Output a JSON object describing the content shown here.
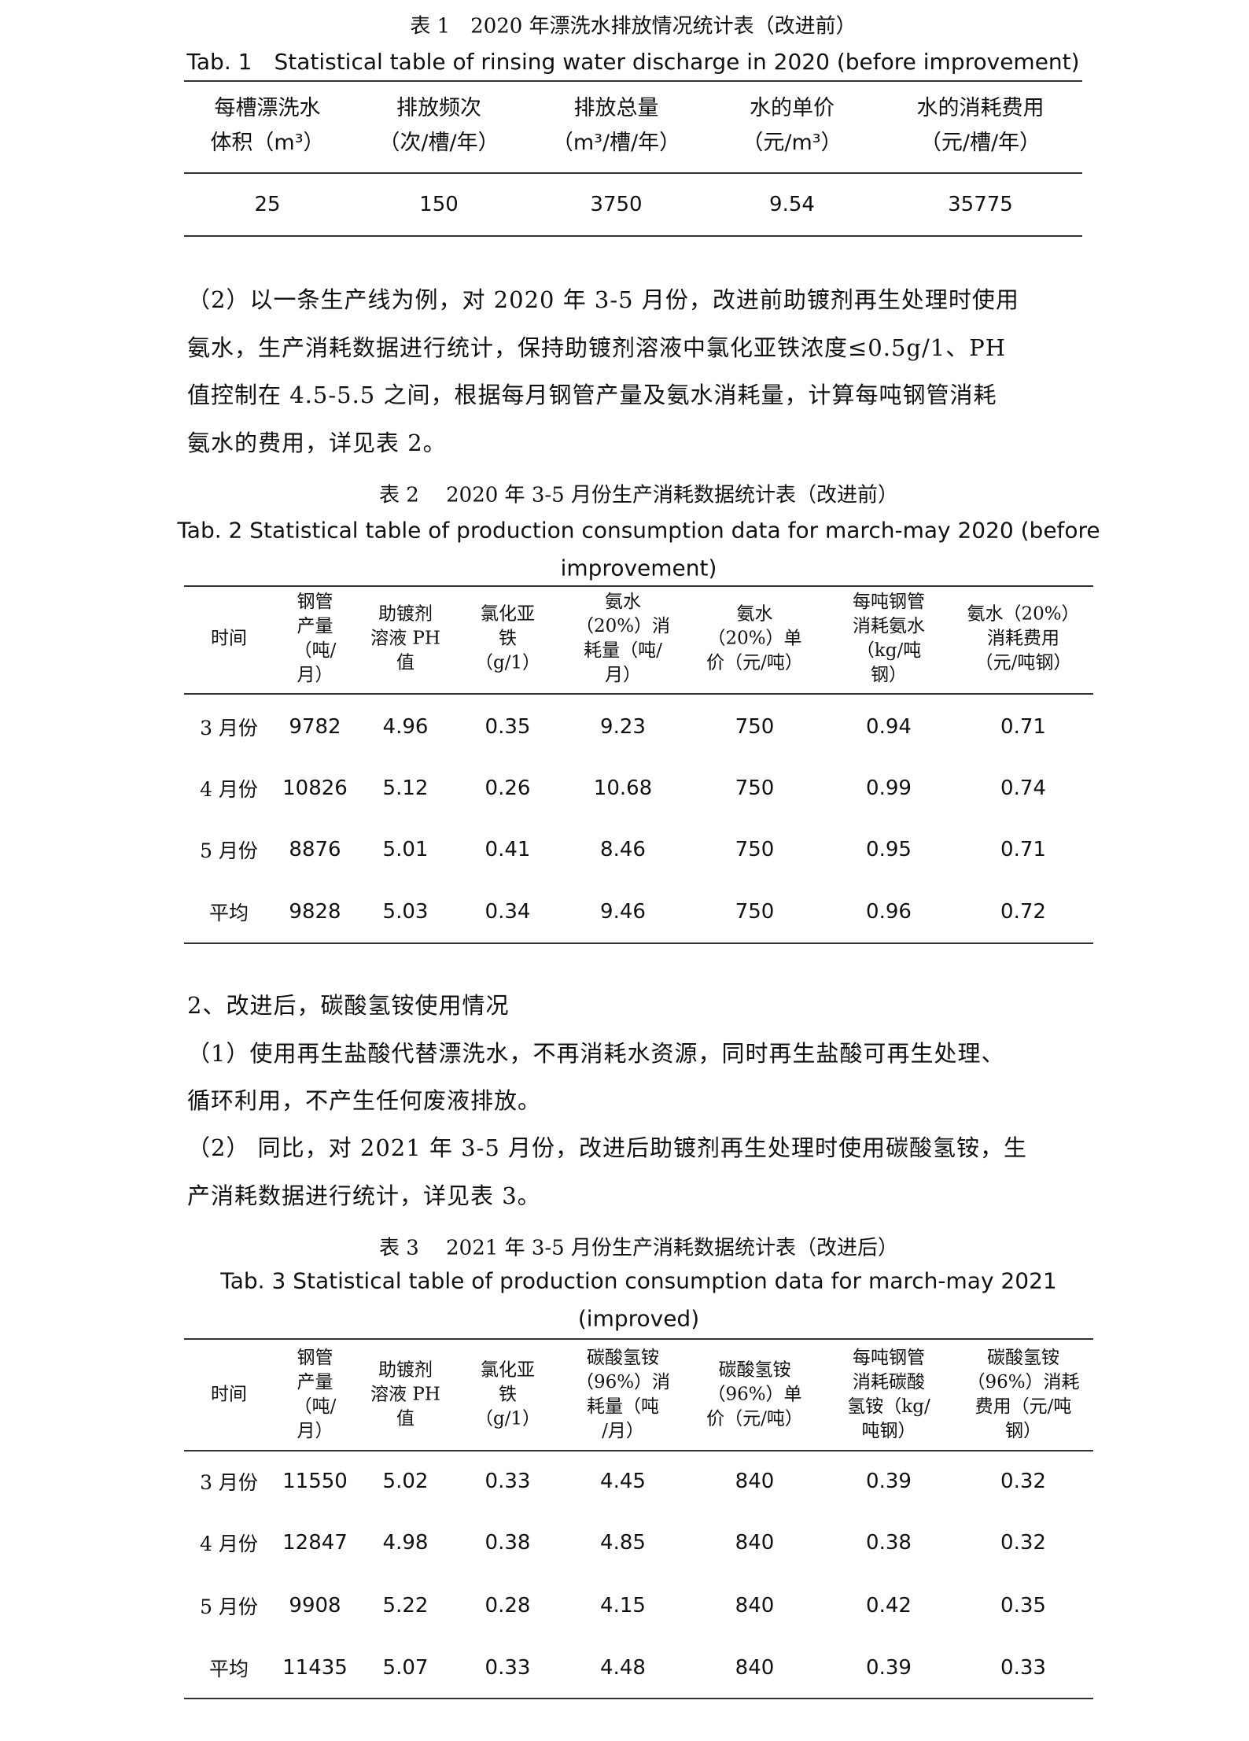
{
  "table1": {
    "caption_cn": "表 1　2020 年漂洗水排放情况统计表（改进前）",
    "caption_en": [
      "Tab. 1　Statistical table of rinsing water discharge in 2020 (before improvement)"
    ],
    "headers": [
      "每槽漂洗水\n体积（m³）",
      "排放频次\n（次/槽/年）",
      "排放总量\n（m³/槽/年）",
      "水的单价\n（元/m³）",
      "水的消耗费用\n（元/槽/年）"
    ],
    "rows": [
      [
        "25",
        "150",
        "3750",
        "9.54",
        "35775"
      ]
    ]
  },
  "paragraph1": {
    "lines": [
      "（2）以一条生产线为例，对 2020 年 3-5 月份，改进前助镀剂再生处理时使用",
      "氨水，生产消耗数据进行统计，保持助镀剂溶液中氯化亚铁浓度≤0.5g/1、PH",
      "值控制在 4.5-5.5 之间，根据每月钢管产量及氨水消耗量，计算每吨钢管消耗",
      "氨水的费用，详见表 2。"
    ]
  },
  "table2": {
    "caption_cn": "表 2　 2020 年 3-5 月份生产消耗数据统计表（改进前）",
    "caption_en": [
      "Tab. 2 Statistical table of production consumption data for march-may 2020 (before",
      "improvement)"
    ],
    "headers": [
      "时间",
      "钢管\n产量\n（吨/\n月）",
      "助镀剂\n溶液 PH\n值",
      "氯化亚\n铁\n（g/1）",
      "氨水\n（20%）消\n耗量（吨/\n月）",
      "氨水\n（20%）单\n价（元/吨）",
      "每吨钢管\n消耗氨水\n（kg/吨\n钢）",
      "氨水（20%）\n消耗费用\n（元/吨钢）"
    ],
    "rows": [
      [
        "3 月份",
        "9782",
        "4.96",
        "0.35",
        "9.23",
        "750",
        "0.94",
        "0.71"
      ],
      [
        "4 月份",
        "10826",
        "5.12",
        "0.26",
        "10.68",
        "750",
        "0.99",
        "0.74"
      ],
      [
        "5 月份",
        "8876",
        "5.01",
        "0.41",
        "8.46",
        "750",
        "0.95",
        "0.71"
      ],
      [
        "平均",
        "9828",
        "5.03",
        "0.34",
        "9.46",
        "750",
        "0.96",
        "0.72"
      ]
    ]
  },
  "paragraph2": {
    "lines": [
      "2、改进后，碳酸氢铵使用情况",
      "（1）使用再生盐酸代替漂洗水，不再消耗水资源，同时再生盐酸可再生处理、",
      "循环利用，不产生任何废液排放。",
      "（2）  同比，对 2021 年 3-5 月份，改进后助镀剂再生处理时使用碳酸氢铵，生",
      "产消耗数据进行统计，详见表 3。"
    ]
  },
  "table3": {
    "caption_cn": "表 3　 2021 年 3-5 月份生产消耗数据统计表（改进后）",
    "caption_en": [
      "Tab. 3  Statistical table of production consumption data for march-may 2021",
      "(improved)"
    ],
    "headers": [
      "时间",
      "钢管\n产量\n（吨/\n月）",
      "助镀剂\n溶液 PH\n值",
      "氯化亚\n铁\n（g/1）",
      "碳酸氢铵\n（96%）消\n耗量（吨\n/月）",
      "碳酸氢铵\n（96%）单\n价（元/吨）",
      "每吨钢管\n消耗碳酸\n氢铵（kg/\n吨钢）",
      "碳酸氢铵\n（96%）消耗\n费用（元/吨\n钢）"
    ],
    "rows": [
      [
        "3 月份",
        "11550",
        "5.02",
        "0.33",
        "4.45",
        "840",
        "0.39",
        "0.32"
      ],
      [
        "4 月份",
        "12847",
        "4.98",
        "0.38",
        "4.85",
        "840",
        "0.38",
        "0.32"
      ],
      [
        "5 月份",
        "9908",
        "5.22",
        "0.28",
        "4.15",
        "840",
        "0.42",
        "0.35"
      ],
      [
        "平均",
        "11435",
        "5.07",
        "0.33",
        "4.48",
        "840",
        "0.39",
        "0.33"
      ]
    ]
  }
}
